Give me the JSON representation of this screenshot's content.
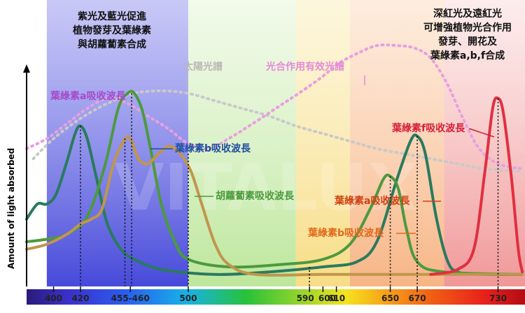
{
  "chart_data": {
    "type": "line",
    "ylabel": "Amount of light absorbed",
    "x_unit": "nm",
    "xlim": [
      380,
      750
    ],
    "ylim": [
      0,
      1
    ],
    "ticks": [
      {
        "label": "400",
        "x": 400
      },
      {
        "label": "420",
        "x": 420
      },
      {
        "label": "455-460",
        "x": 457
      },
      {
        "label": "500",
        "x": 500
      },
      {
        "label": "590",
        "x": 590
      },
      {
        "label": "600",
        "x": 600
      },
      {
        "label": "610",
        "x": 610
      },
      {
        "label": "650",
        "x": 650
      },
      {
        "label": "670",
        "x": 670
      },
      {
        "label": "730",
        "x": 730
      }
    ],
    "regions": [
      {
        "name": "blue-violet",
        "from": 395,
        "to": 500,
        "color": "#5a5de0"
      },
      {
        "name": "green",
        "from": 500,
        "to": 580,
        "color": "#bfe8a0"
      },
      {
        "name": "yellow",
        "from": 580,
        "to": 620,
        "color": "#f6e08c"
      },
      {
        "name": "orange",
        "from": 620,
        "to": 690,
        "color": "#f7b98a"
      },
      {
        "name": "red",
        "from": 690,
        "to": 750,
        "color": "#f2a0a0"
      }
    ],
    "series": [
      {
        "name": "葉綠素a吸收波長",
        "color": "#2a7a5e",
        "points": [
          [
            380,
            0.24
          ],
          [
            388,
            0.3
          ],
          [
            395,
            0.3
          ],
          [
            402,
            0.34
          ],
          [
            410,
            0.47
          ],
          [
            416,
            0.58
          ],
          [
            420,
            0.61
          ],
          [
            425,
            0.56
          ],
          [
            432,
            0.4
          ],
          [
            440,
            0.22
          ],
          [
            450,
            0.12
          ],
          [
            460,
            0.08
          ],
          [
            480,
            0.04
          ],
          [
            520,
            0.02
          ],
          [
            560,
            0.03
          ],
          [
            600,
            0.05
          ],
          [
            625,
            0.07
          ],
          [
            640,
            0.15
          ],
          [
            655,
            0.4
          ],
          [
            665,
            0.55
          ],
          [
            670,
            0.57
          ],
          [
            676,
            0.5
          ],
          [
            684,
            0.25
          ],
          [
            692,
            0.08
          ],
          [
            700,
            0.03
          ],
          [
            720,
            0.02
          ],
          [
            748,
            0.02
          ]
        ]
      },
      {
        "name": "葉綠素b吸收波長",
        "color": "#4c9a3e",
        "points": [
          [
            380,
            0.15
          ],
          [
            395,
            0.16
          ],
          [
            410,
            0.18
          ],
          [
            425,
            0.25
          ],
          [
            438,
            0.45
          ],
          [
            448,
            0.68
          ],
          [
            455,
            0.74
          ],
          [
            460,
            0.74
          ],
          [
            466,
            0.67
          ],
          [
            472,
            0.52
          ],
          [
            480,
            0.3
          ],
          [
            490,
            0.15
          ],
          [
            500,
            0.08
          ],
          [
            530,
            0.05
          ],
          [
            570,
            0.06
          ],
          [
            600,
            0.08
          ],
          [
            620,
            0.14
          ],
          [
            635,
            0.28
          ],
          [
            645,
            0.4
          ],
          [
            650,
            0.41
          ],
          [
            656,
            0.36
          ],
          [
            662,
            0.2
          ],
          [
            670,
            0.07
          ],
          [
            690,
            0.03
          ],
          [
            748,
            0.02
          ]
        ]
      },
      {
        "name": "胡蘿蔔素吸收波長",
        "color": "#c0964c",
        "points": [
          [
            380,
            0.12
          ],
          [
            395,
            0.14
          ],
          [
            410,
            0.18
          ],
          [
            420,
            0.22
          ],
          [
            428,
            0.24
          ],
          [
            436,
            0.28
          ],
          [
            444,
            0.45
          ],
          [
            452,
            0.55
          ],
          [
            457,
            0.56
          ],
          [
            463,
            0.48
          ],
          [
            470,
            0.46
          ],
          [
            478,
            0.5
          ],
          [
            486,
            0.53
          ],
          [
            494,
            0.5
          ],
          [
            502,
            0.43
          ],
          [
            510,
            0.3
          ],
          [
            520,
            0.14
          ],
          [
            530,
            0.06
          ],
          [
            550,
            0.02
          ],
          [
            600,
            0.02
          ],
          [
            650,
            0.02
          ],
          [
            748,
            0.02
          ]
        ]
      },
      {
        "name": "葉綠素f吸收波長",
        "color": "#e03040",
        "points": [
          [
            680,
            0.02
          ],
          [
            700,
            0.04
          ],
          [
            712,
            0.12
          ],
          [
            720,
            0.42
          ],
          [
            726,
            0.68
          ],
          [
            730,
            0.72
          ],
          [
            734,
            0.66
          ],
          [
            740,
            0.4
          ],
          [
            745,
            0.12
          ],
          [
            748,
            0.03
          ]
        ]
      },
      {
        "name": "太陽光譜",
        "color": "#c9c9c9",
        "dashed": true,
        "points": [
          [
            385,
            0.48
          ],
          [
            400,
            0.56
          ],
          [
            420,
            0.64
          ],
          [
            440,
            0.7
          ],
          [
            460,
            0.74
          ],
          [
            480,
            0.75
          ],
          [
            500,
            0.74
          ],
          [
            520,
            0.71
          ],
          [
            540,
            0.68
          ],
          [
            560,
            0.65
          ],
          [
            580,
            0.61
          ],
          [
            600,
            0.58
          ],
          [
            620,
            0.55
          ],
          [
            640,
            0.52
          ],
          [
            660,
            0.5
          ],
          [
            680,
            0.48
          ],
          [
            700,
            0.46
          ],
          [
            720,
            0.44
          ],
          [
            748,
            0.43
          ]
        ]
      },
      {
        "name": "光合作用有效光譜",
        "color": "#e8a0e0",
        "dashed": true,
        "points": [
          [
            380,
            0.52
          ],
          [
            395,
            0.56
          ],
          [
            410,
            0.62
          ],
          [
            425,
            0.68
          ],
          [
            440,
            0.72
          ],
          [
            455,
            0.7
          ],
          [
            470,
            0.65
          ],
          [
            485,
            0.6
          ],
          [
            500,
            0.54
          ],
          [
            515,
            0.52
          ],
          [
            530,
            0.56
          ],
          [
            548,
            0.62
          ],
          [
            565,
            0.68
          ],
          [
            582,
            0.74
          ],
          [
            598,
            0.8
          ],
          [
            612,
            0.86
          ],
          [
            626,
            0.9
          ],
          [
            640,
            0.93
          ],
          [
            655,
            0.93
          ],
          [
            668,
            0.92
          ],
          [
            680,
            0.88
          ],
          [
            692,
            0.78
          ],
          [
            704,
            0.64
          ],
          [
            716,
            0.52
          ],
          [
            730,
            0.46
          ],
          [
            748,
            0.44
          ]
        ]
      }
    ],
    "annotations": [
      {
        "text_lines": [
          "紫光及藍光促進",
          "植物發芽及葉綠素",
          "與胡蘿蔔素合成"
        ],
        "color": "#111111"
      },
      {
        "text_lines": [
          "深紅光及遠紅光",
          "可增強植物光合作用",
          "發芽、開花及",
          "葉綠素a,b,f合成"
        ],
        "color": "#111111"
      }
    ],
    "series_labels": [
      {
        "text": "葉綠素a吸收波長",
        "color": "#a64ac9"
      },
      {
        "text": "葉綠素b吸收波長",
        "color": "#1f4fa0"
      },
      {
        "text": "胡蘿蔔素吸收波長",
        "color": "#4c9a3e"
      },
      {
        "text": "葉綠素a吸收波長",
        "color": "#d04010"
      },
      {
        "text": "葉綠素b吸收波長",
        "color": "#e06a1a"
      },
      {
        "text": "葉綠素f吸收波長",
        "color": "#d6203a"
      },
      {
        "text": "太陽光譜",
        "color": "#b8b8b8"
      },
      {
        "text": "光合作用有效光譜",
        "color": "#e48ad8"
      }
    ],
    "watermark": "VITALUX"
  }
}
